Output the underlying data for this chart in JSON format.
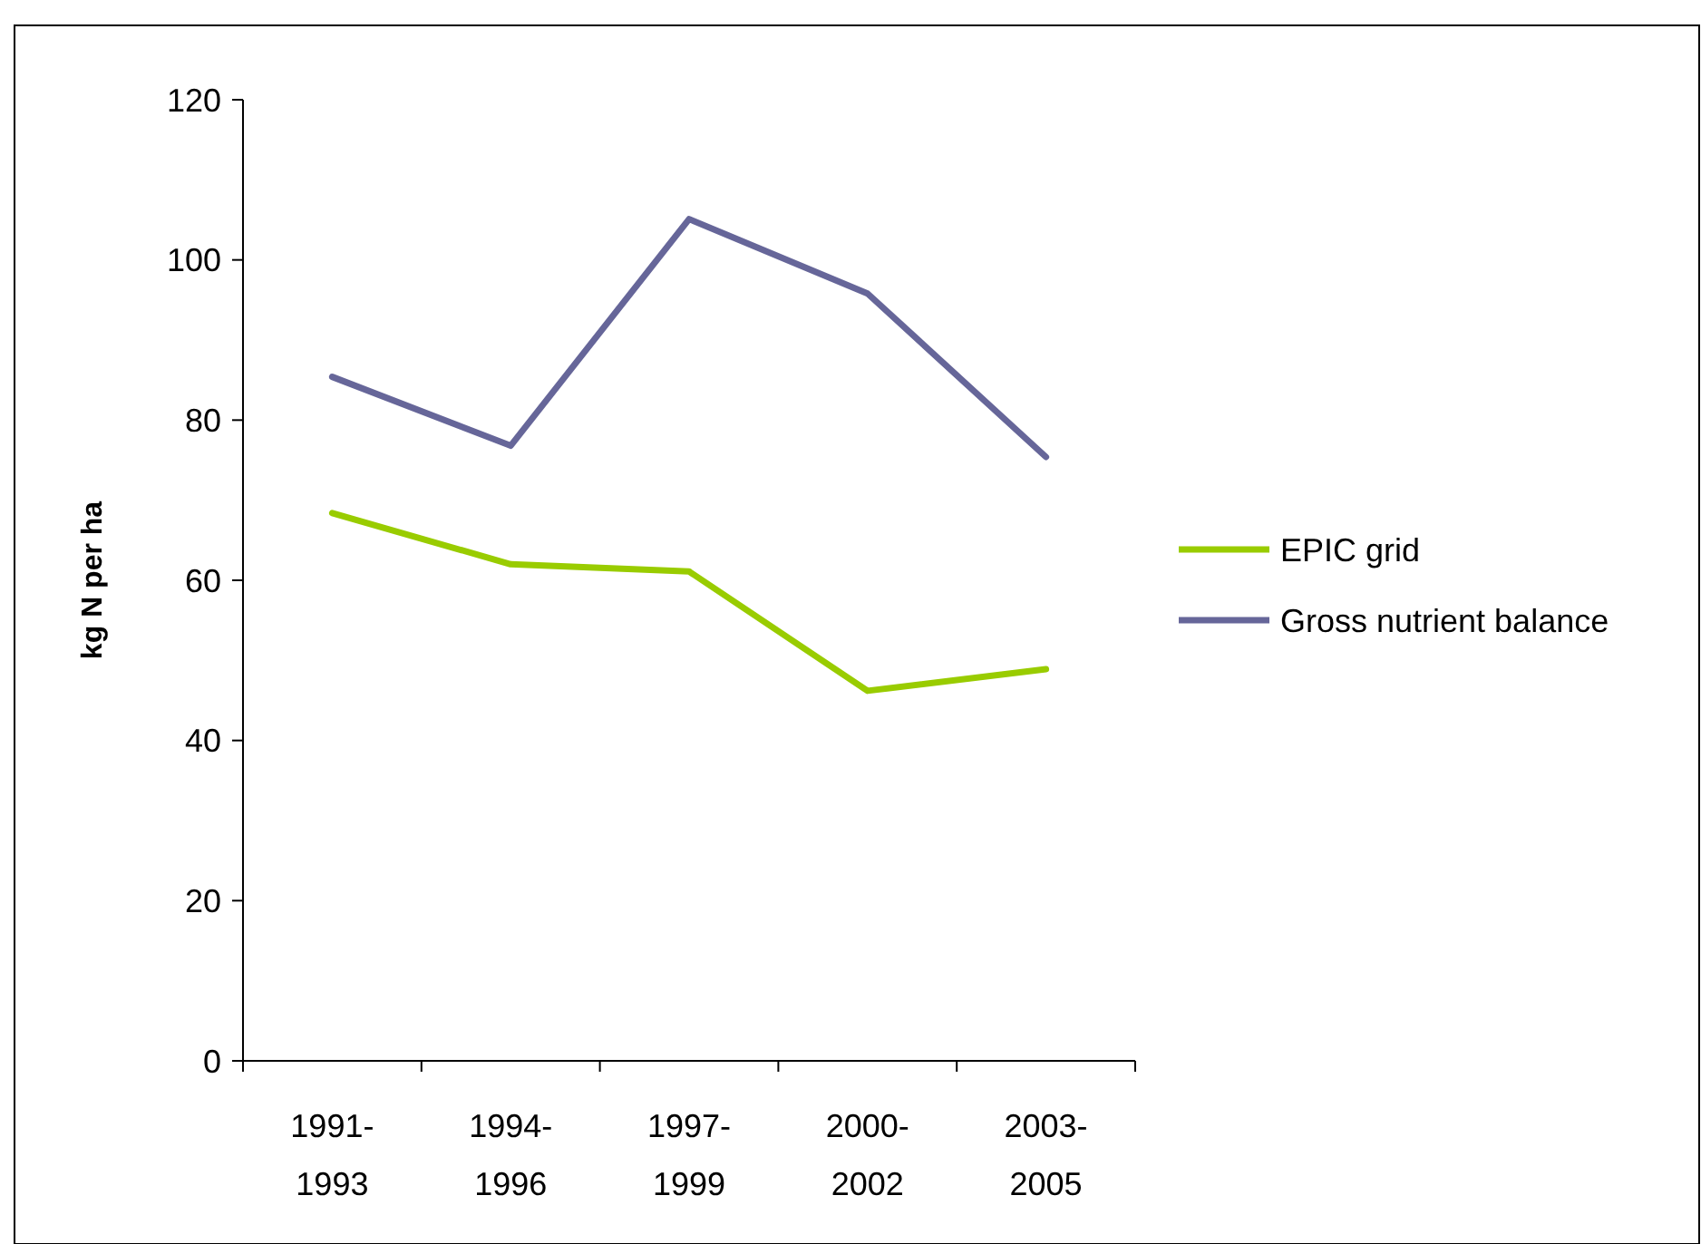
{
  "chart_data": {
    "type": "line",
    "ylabel": "kg N per ha",
    "categories": [
      "1991-1993",
      "1994-1996",
      "1997-1999",
      "2000-2002",
      "2003-2005"
    ],
    "series": [
      {
        "name": "EPIC grid",
        "color": "#99cc00",
        "values": [
          68.4,
          62,
          61.1,
          46.2,
          48.9
        ]
      },
      {
        "name": "Gross nutrient balance",
        "color": "#666699",
        "values": [
          85.4,
          76.8,
          105.1,
          95.8,
          75.4
        ]
      }
    ],
    "ylim": [
      0,
      120
    ],
    "yticks": [
      0,
      20,
      40,
      60,
      80,
      100,
      120
    ],
    "grid": false,
    "legend": "right",
    "marker": "none",
    "line_style": "solid"
  }
}
